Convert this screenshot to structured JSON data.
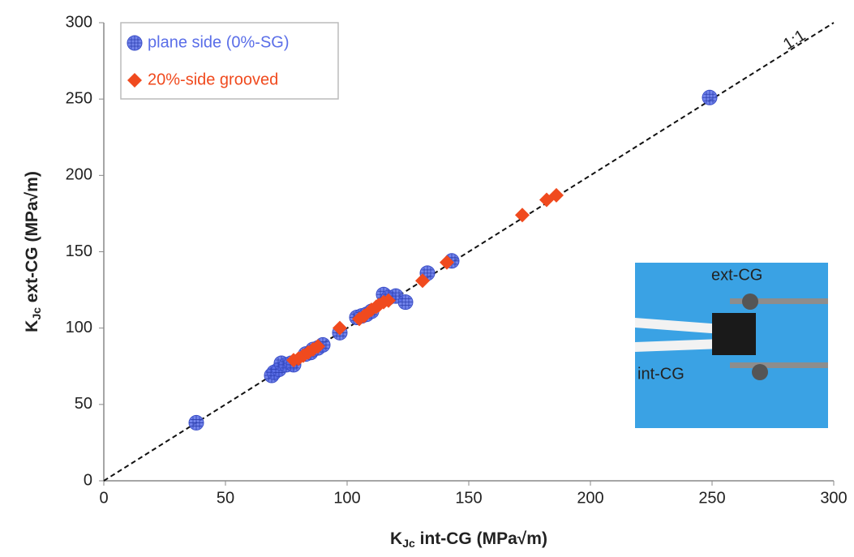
{
  "chart_data": {
    "type": "scatter",
    "xlabel": [
      "K",
      "Jc",
      " int-CG (MPa√m)"
    ],
    "ylabel": [
      "K",
      "Jc",
      " ext-CG (MPa√m)"
    ],
    "xlim": [
      0,
      300
    ],
    "ylim": [
      0,
      300
    ],
    "xticks": [
      0,
      50,
      100,
      150,
      200,
      250,
      300
    ],
    "yticks": [
      0,
      50,
      100,
      150,
      200,
      250,
      300
    ],
    "reference_line_label": "1:1",
    "inset_labels": [
      "ext-CG",
      "int-CG"
    ],
    "series": [
      {
        "name": "plane side (0%-SG)",
        "color": "#5a6ee8",
        "marker": "circle",
        "x": [
          38,
          69,
          70,
          72,
          73,
          75,
          77,
          78,
          83,
          85,
          86,
          88,
          90,
          97,
          104,
          106,
          108,
          110,
          115,
          117,
          120,
          124,
          133,
          143,
          249
        ],
        "y": [
          38,
          69,
          71,
          73,
          77,
          76,
          77,
          76,
          83,
          84,
          86,
          87,
          89,
          97,
          107,
          108,
          109,
          111,
          122,
          120,
          121,
          117,
          136,
          144,
          251
        ]
      },
      {
        "name": "20%-side grooved",
        "color": "#f04a1e",
        "marker": "diamond",
        "x": [
          78,
          80,
          82,
          84,
          86,
          88,
          97,
          105,
          107,
          110,
          112,
          113,
          115,
          117,
          131,
          141,
          172,
          182,
          186
        ],
        "y": [
          79,
          80,
          82,
          84,
          86,
          88,
          100,
          106,
          108,
          112,
          114,
          115,
          117,
          118,
          131,
          143,
          174,
          184,
          187
        ]
      }
    ]
  }
}
